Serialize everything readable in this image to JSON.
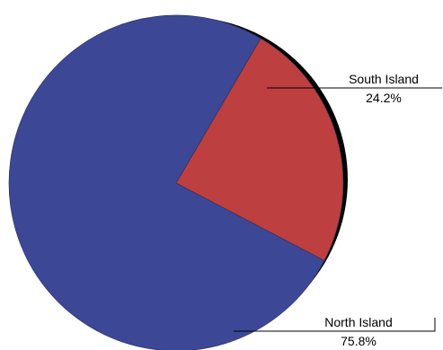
{
  "chart_data": {
    "type": "pie",
    "slices": [
      {
        "label": "South Island",
        "value": 24.2,
        "value_label": "24.2%",
        "color": "#BE3F40"
      },
      {
        "label": "North Island",
        "value": 75.8,
        "value_label": "75.8%",
        "color": "#3C4796"
      }
    ],
    "shadow_color": "#000000",
    "legend": "none"
  }
}
